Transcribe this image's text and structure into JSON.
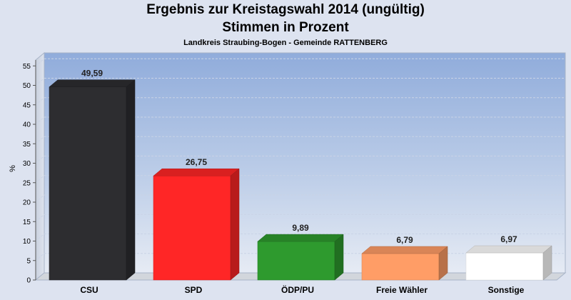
{
  "chart_data": {
    "type": "bar",
    "title": "Ergebnis zur Kreistagswahl 2014 (ungültig)",
    "subtitle": "Stimmen in Prozent",
    "subsubtitle": "Landkreis Straubing-Bogen - Gemeinde RATTENBERG",
    "xlabel": "",
    "ylabel": "%",
    "ylim": [
      0,
      57
    ],
    "yticks": [
      0,
      5,
      10,
      15,
      20,
      25,
      30,
      35,
      40,
      45,
      50,
      55
    ],
    "grid": true,
    "categories": [
      "CSU",
      "SPD",
      "ÖDP/PU",
      "Freie Wähler",
      "Sonstige"
    ],
    "values": [
      49.59,
      26.75,
      9.89,
      6.79,
      6.97
    ],
    "value_labels": [
      "49,59",
      "26,75",
      "9,89",
      "6,79",
      "6,97"
    ],
    "colors": [
      "#2d2d30",
      "#ff2626",
      "#2e9a2e",
      "#ff9d66",
      "#ffffff"
    ]
  }
}
